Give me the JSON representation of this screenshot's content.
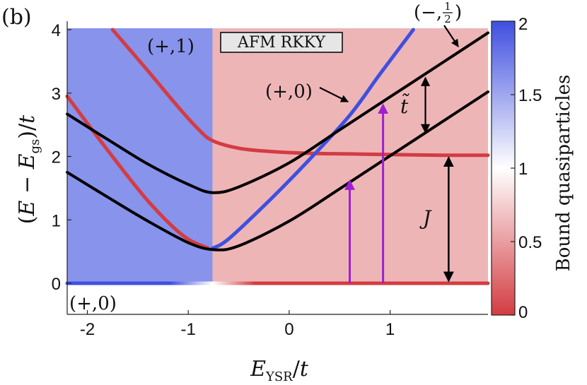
{
  "panel_label": "(b)",
  "chart_data": {
    "type": "line",
    "xlabel": "E_YSR / t",
    "ylabel": "(E − E_gs) / t",
    "xlim": [
      -2.2,
      1.97
    ],
    "ylim": [
      0,
      4
    ],
    "xticks": [
      -2,
      -1,
      0,
      1
    ],
    "yticks": [
      0,
      1,
      2,
      3,
      4
    ],
    "x_tick_labels": [
      "-2",
      "-1",
      "0",
      "1"
    ],
    "y_tick_labels": [
      "0",
      "1",
      "2",
      "3",
      "4"
    ],
    "grid": false,
    "regions": [
      {
        "x": [
          -2.2,
          -0.76
        ],
        "level": 1.65
      },
      {
        "x": [
          -0.76,
          1.97
        ],
        "level": 0.6
      }
    ],
    "series": [
      {
        "level": "mixed",
        "x": [
          -2.2,
          -0.76,
          1.97
        ],
        "y": [
          0,
          0,
          0
        ]
      },
      {
        "level": 0,
        "x": [
          -2.2,
          -1.8,
          -1.4,
          -1.05,
          -0.8
        ],
        "y": [
          2.95,
          2.1,
          1.3,
          0.75,
          0.55
        ]
      },
      {
        "level": 0,
        "x": [
          -1.75,
          -1.4,
          -1.1,
          -0.9,
          -0.76,
          -0.5,
          -0.2,
          0.2,
          0.6,
          1.0,
          1.5,
          1.97
        ],
        "y": [
          4.0,
          3.35,
          2.78,
          2.43,
          2.25,
          2.13,
          2.08,
          2.05,
          2.04,
          2.03,
          2.02,
          2.02
        ]
      },
      {
        "level": 2,
        "x": [
          -0.76,
          -0.6,
          -0.2,
          0.2,
          0.6,
          0.9,
          1.23
        ],
        "y": [
          0.55,
          0.7,
          1.3,
          1.95,
          2.65,
          3.3,
          4.0
        ]
      },
      {
        "level": -1,
        "x": [
          -2.2,
          -1.8,
          -1.4,
          -1.0,
          -0.75,
          -0.5,
          0.0,
          0.5,
          1.0,
          1.5,
          1.97
        ],
        "y": [
          1.75,
          1.36,
          0.98,
          0.64,
          0.53,
          0.59,
          0.98,
          1.49,
          2.01,
          2.53,
          3.02
        ]
      },
      {
        "level": -1,
        "x": [
          -2.2,
          -1.8,
          -1.4,
          -1.0,
          -0.76,
          -0.5,
          0.0,
          0.5,
          1.0,
          1.5,
          1.97
        ],
        "y": [
          2.67,
          2.27,
          1.88,
          1.56,
          1.43,
          1.52,
          1.9,
          2.42,
          2.94,
          3.46,
          3.95
        ]
      }
    ],
    "transitions": [
      {
        "x": 0.6,
        "y": [
          0,
          1.65
        ]
      },
      {
        "x": 0.93,
        "y": [
          0,
          2.85
        ]
      }
    ],
    "annotations": [
      {
        "text": "(+,1)",
        "x": -1.95,
        "y": 3.8
      },
      {
        "text": "AFM RKKY",
        "x": -0.55,
        "y": 3.8
      },
      {
        "text": "(+,0)",
        "x": -1.95,
        "y": -0.3
      },
      {
        "text": "(+,0)",
        "x": -0.05,
        "y": 3.1
      },
      {
        "text": "(−, ½)",
        "x": 1.3,
        "y": 4.25
      },
      {
        "text": "t̃",
        "x": 1.35,
        "y": 2.9
      },
      {
        "text": "J",
        "x": 1.4,
        "y": 1.05
      }
    ],
    "colorbar": {
      "label": "Bound quasiparticles",
      "range": [
        0,
        2
      ],
      "ticks": [
        0,
        0.5,
        1,
        1.5,
        2
      ],
      "tick_labels": [
        "0",
        "0.5",
        "1",
        "1.5",
        "2"
      ],
      "colors": {
        "low": "#d33c42",
        "mid": "#ffffff",
        "high": "#3f4fe0"
      }
    }
  }
}
